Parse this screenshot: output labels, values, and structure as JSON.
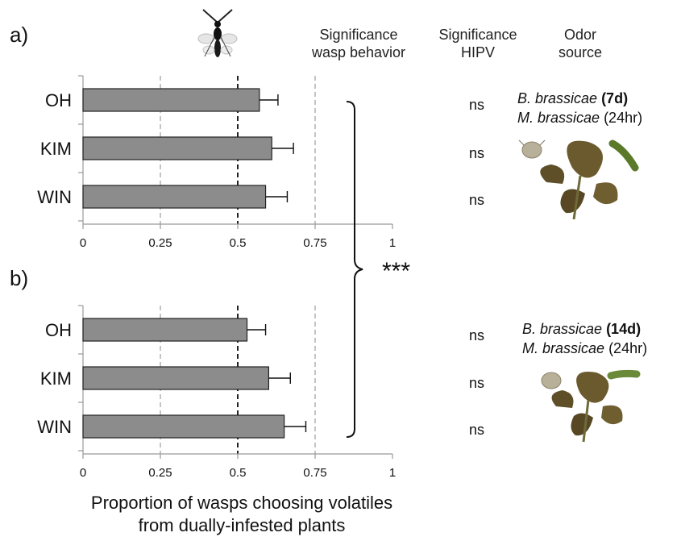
{
  "panel_labels": [
    "a)",
    "b)"
  ],
  "headers": {
    "wasp_behavior": [
      "Significance",
      "wasp behavior"
    ],
    "hipv": [
      "Significance",
      "HIPV"
    ],
    "odor_source": [
      "Odor",
      "source"
    ]
  },
  "significance_bracket": "***",
  "odor_sources": [
    {
      "species1": "B. brassicae",
      "age1": "(7d)",
      "species2": "M. brassicae",
      "age2": "(24hr)"
    },
    {
      "species1": "B. brassicae",
      "age1": "(14d)",
      "species2": "M. brassicae",
      "age2": "(24hr)"
    }
  ],
  "xlabel": [
    "Proportion of wasps choosing volatiles",
    "from dually-infested plants"
  ],
  "chart_data": [
    {
      "type": "bar",
      "orientation": "horizontal",
      "panel": "a)",
      "categories": [
        "OH",
        "KIM",
        "WIN"
      ],
      "values": [
        0.57,
        0.61,
        0.59
      ],
      "error": [
        0.06,
        0.07,
        0.07
      ],
      "significance_hipv": [
        "ns",
        "ns",
        "ns"
      ],
      "xlim": [
        0,
        1
      ],
      "xticks": [
        "0",
        "0.25",
        "0.5",
        "0.75",
        "1"
      ],
      "reference_lines": [
        0.25,
        0.5,
        0.75
      ],
      "bar_color": "#8c8c8c"
    },
    {
      "type": "bar",
      "orientation": "horizontal",
      "panel": "b)",
      "categories": [
        "OH",
        "KIM",
        "WIN"
      ],
      "values": [
        0.53,
        0.6,
        0.65
      ],
      "error": [
        0.06,
        0.07,
        0.07
      ],
      "significance_hipv": [
        "ns",
        "ns",
        "ns"
      ],
      "xlim": [
        0,
        1
      ],
      "xticks": [
        "0",
        "0.25",
        "0.5",
        "0.75",
        "1"
      ],
      "reference_lines": [
        0.25,
        0.5,
        0.75
      ],
      "bar_color": "#8c8c8c"
    }
  ]
}
